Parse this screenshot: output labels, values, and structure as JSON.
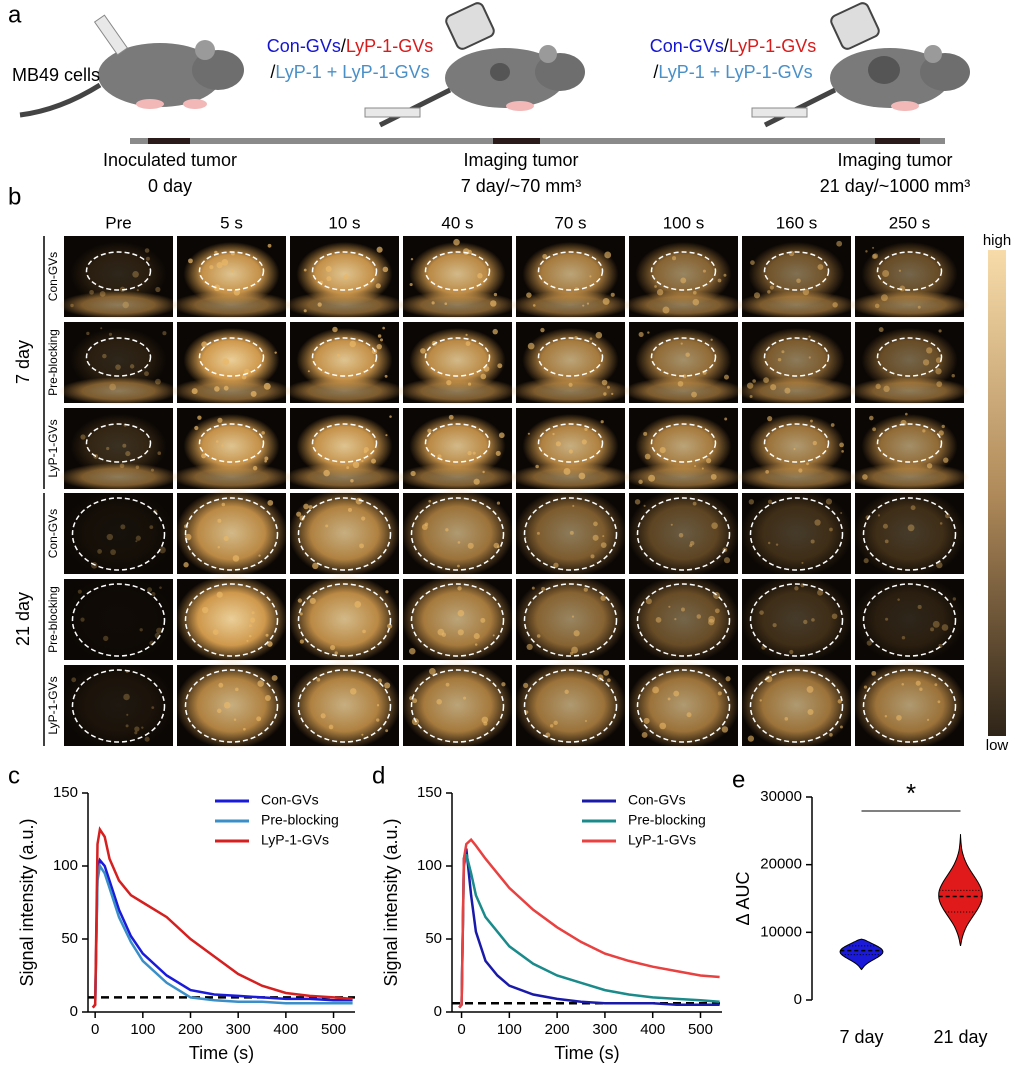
{
  "panel_a": {
    "label": "a",
    "cells_label": "MB49 cells",
    "treatment_labels": [
      {
        "lines": [
          [
            {
              "text": "Con-GVs",
              "color": "#1515d0"
            },
            {
              "text": "/",
              "color": "#000000"
            },
            {
              "text": "LyP-1-GVs",
              "color": "#d81b1b"
            }
          ],
          [
            {
              "text": "/",
              "color": "#000000"
            },
            {
              "text": "LyP-1 + LyP-1-GVs",
              "color": "#4a90c8"
            }
          ]
        ]
      },
      {
        "lines": [
          [
            {
              "text": "Con-GVs",
              "color": "#1515d0"
            },
            {
              "text": "/",
              "color": "#000000"
            },
            {
              "text": "LyP-1-GVs",
              "color": "#d81b1b"
            }
          ],
          [
            {
              "text": "/",
              "color": "#000000"
            },
            {
              "text": "LyP-1 + LyP-1-GVs",
              "color": "#4a90c8"
            }
          ]
        ]
      }
    ],
    "timeline": [
      {
        "event": "Inoculated tumor",
        "time": "0 day"
      },
      {
        "event": "Imaging tumor",
        "time": "7 day/~70 mm³"
      },
      {
        "event": "Imaging tumor",
        "time": "21 day/~1000 mm³"
      }
    ]
  },
  "panel_b": {
    "label": "b",
    "columns": [
      "Pre",
      "5 s",
      "10 s",
      "40 s",
      "70 s",
      "100 s",
      "160 s",
      "250 s"
    ],
    "groups": [
      {
        "name": "7 day",
        "rows": [
          "Con-GVs",
          "Pre-blocking",
          "LyP-1-GVs"
        ]
      },
      {
        "name": "21 day",
        "rows": [
          "Con-GVs",
          "Pre-blocking",
          "LyP-1-GVs"
        ]
      }
    ],
    "colorbar": {
      "high": "high",
      "low": "low"
    }
  },
  "chart_data": [
    {
      "type": "line",
      "label": "c",
      "xlabel": "Time (s)",
      "ylabel": "Signal intensity (a.u.)",
      "x": [
        -5,
        0,
        5,
        10,
        20,
        30,
        50,
        75,
        100,
        150,
        200,
        250,
        300,
        350,
        400,
        450,
        500,
        540
      ],
      "series": [
        {
          "name": "Con-GVs",
          "color": "#1a1adb",
          "values": [
            3,
            5,
            95,
            104,
            100,
            90,
            70,
            52,
            40,
            25,
            15,
            12,
            11,
            10,
            9,
            9,
            8,
            8
          ]
        },
        {
          "name": "Pre-blocking",
          "color": "#3a8fc8",
          "values": [
            3,
            5,
            90,
            100,
            95,
            85,
            65,
            48,
            35,
            20,
            10,
            8,
            7,
            7,
            6,
            6,
            6,
            6
          ]
        },
        {
          "name": "LyP-1-GVs",
          "color": "#d61f1f",
          "values": [
            3,
            5,
            115,
            125,
            120,
            105,
            90,
            80,
            75,
            65,
            50,
            38,
            26,
            18,
            13,
            11,
            10,
            9
          ]
        }
      ],
      "xlim": [
        -15,
        545
      ],
      "ylim": [
        0,
        150
      ],
      "xticks": [
        0,
        100,
        200,
        300,
        400,
        500
      ],
      "yticks": [
        0,
        50,
        100,
        150
      ],
      "reference_line": 10,
      "legend": "top-right"
    },
    {
      "type": "line",
      "label": "d",
      "xlabel": "Time (s)",
      "ylabel": "Signal intensity (a.u.)",
      "x": [
        -5,
        0,
        5,
        10,
        20,
        30,
        50,
        75,
        100,
        150,
        200,
        250,
        300,
        350,
        400,
        450,
        500,
        540
      ],
      "series": [
        {
          "name": "Con-GVs",
          "color": "#1a1aaa",
          "values": [
            3,
            5,
            105,
            112,
            80,
            55,
            35,
            25,
            18,
            12,
            9,
            7,
            6,
            6,
            6,
            5,
            5,
            5
          ]
        },
        {
          "name": "Pre-blocking",
          "color": "#1a8a8a",
          "values": [
            3,
            5,
            100,
            108,
            95,
            80,
            65,
            55,
            45,
            33,
            25,
            20,
            15,
            12,
            10,
            9,
            8,
            7
          ]
        },
        {
          "name": "LyP-1-GVs",
          "color": "#e94040",
          "values": [
            3,
            5,
            105,
            115,
            118,
            114,
            105,
            95,
            85,
            70,
            58,
            48,
            40,
            35,
            31,
            28,
            25,
            24
          ]
        }
      ],
      "xlim": [
        -20,
        545
      ],
      "ylim": [
        0,
        150
      ],
      "xticks": [
        0,
        100,
        200,
        300,
        400,
        500
      ],
      "yticks": [
        0,
        50,
        100,
        150
      ],
      "reference_line": 6,
      "legend": "top-right"
    },
    {
      "type": "violin",
      "label": "e",
      "ylabel": "Δ AUC",
      "categories": [
        "7 day",
        "21 day"
      ],
      "colors": [
        "#1a1ad8",
        "#e01a1a"
      ],
      "median": [
        7300,
        15300
      ],
      "q1": [
        6700,
        13000
      ],
      "q3": [
        8000,
        16200
      ],
      "min": [
        4500,
        8000
      ],
      "max": [
        9000,
        24500
      ],
      "ylim": [
        0,
        30000
      ],
      "yticks": [
        0,
        10000,
        20000,
        30000
      ],
      "annotation": "*"
    }
  ]
}
